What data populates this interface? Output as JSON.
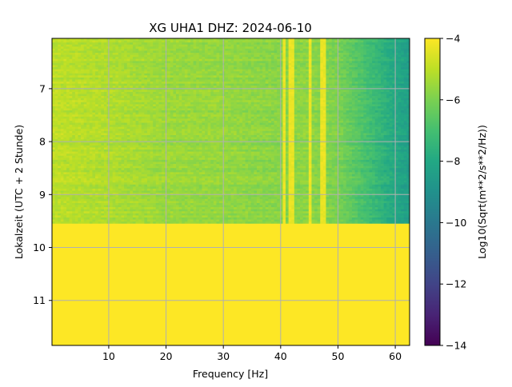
{
  "chart_data": {
    "type": "heatmap",
    "title": "XG UHA1  DHZ: 2024-06-10",
    "xlabel": "Frequency [Hz]",
    "ylabel": "Lokalzeit (UTC + 2 Stunde)",
    "xlim": [
      0.1,
      62.5
    ],
    "ylim": [
      11.85,
      6.05
    ],
    "y_inverted": true,
    "x_ticks": [
      10,
      20,
      30,
      40,
      50,
      60
    ],
    "x_tick_labels": [
      "10",
      "20",
      "30",
      "40",
      "50",
      "60"
    ],
    "y_ticks": [
      7,
      8,
      9,
      10,
      11
    ],
    "y_tick_labels": [
      "7",
      "8",
      "9",
      "10",
      "11"
    ],
    "grid": true,
    "colormap": "viridis",
    "colorbar": {
      "label": "Log10(Sqrt(m**2/s**2/Hz))",
      "range": [
        -14,
        -4
      ],
      "ticks": [
        -4,
        -6,
        -8,
        -10,
        -12,
        -14
      ],
      "tick_labels": [
        "−4",
        "−6",
        "−8",
        "−10",
        "−12",
        "−14"
      ]
    },
    "data_end_hour": 9.55,
    "no_data_fill_value": -4,
    "spectrum_profile": [
      {
        "freq": 0.1,
        "value": -5.0
      },
      {
        "freq": 10,
        "value": -5.2
      },
      {
        "freq": 20,
        "value": -5.5
      },
      {
        "freq": 30,
        "value": -5.6
      },
      {
        "freq": 40,
        "value": -5.8
      },
      {
        "freq": 45,
        "value": -5.7
      },
      {
        "freq": 50,
        "value": -6.0
      },
      {
        "freq": 55,
        "value": -7.0
      },
      {
        "freq": 60,
        "value": -8.0
      },
      {
        "freq": 62.5,
        "value": -8.4
      }
    ],
    "spectral_lines_hz": [
      40.8,
      41.8,
      42.3,
      45.2,
      47.0,
      47.6
    ],
    "spectral_line_value": -4.3
  }
}
